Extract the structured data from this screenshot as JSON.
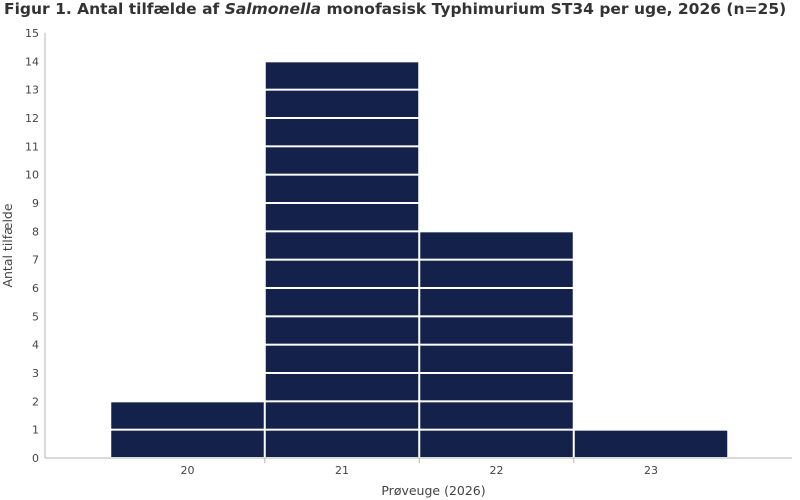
{
  "chart_data": {
    "type": "bar",
    "title_parts": {
      "prefix": "Figur 1. Antal tilfælde af ",
      "italic": "Salmonella",
      "suffix": " monofasisk Typhimurium ST34 per uge, 2026 (n=25)"
    },
    "categories": [
      "20",
      "21",
      "22",
      "23"
    ],
    "values": [
      2,
      14,
      8,
      1
    ],
    "xlabel": "Prøveuge (2026)",
    "ylabel": "Antal tilfælde",
    "ylim": [
      0,
      15
    ],
    "yticks": [
      "0",
      "1",
      "2",
      "3",
      "4",
      "5",
      "6",
      "7",
      "8",
      "9",
      "10",
      "11",
      "12",
      "13",
      "14",
      "15"
    ],
    "grid": false,
    "bar_color": "#14214b",
    "bar_style": "stacked unit blocks (one block per case)"
  }
}
